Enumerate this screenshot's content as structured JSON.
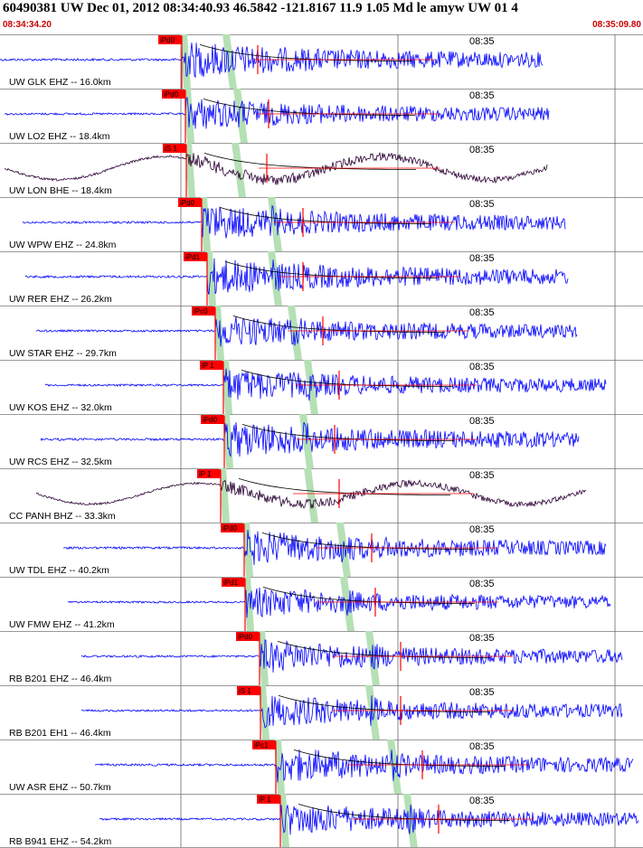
{
  "header": {
    "title": "60490381 UW Dec 01, 2012 08:34:40.93   46.5842 -121.8167 11.9 1.05 Md le amyw UW 01   4",
    "start_time": "08:34:34.20",
    "end_time": "08:35:09.80"
  },
  "colors": {
    "trace_blue": "#0000ff",
    "trace_dark": "#2a0033",
    "pick_red": "#ff0000",
    "window_green": "#b5e0b5",
    "grid": "#666666"
  },
  "chart_data": {
    "type": "line",
    "x_range": [
      "08:34:34.20",
      "08:35:09.80"
    ],
    "minute_marker": "08:35",
    "traces": [
      {
        "label": "UW GLK EHZ -- 16.0km",
        "pick": "iPd0",
        "kind": "hf",
        "amp": 0.9
      },
      {
        "label": "UW LO2 EHZ -- 18.4km",
        "pick": "iPd0",
        "kind": "hf",
        "amp": 0.8
      },
      {
        "label": "UW LON BHE -- 18.4km",
        "pick": "iS 1",
        "kind": "lf",
        "amp": 0.9
      },
      {
        "label": "UW WPW EHZ -- 24.8km",
        "pick": "iPd0",
        "kind": "hf",
        "amp": 0.85
      },
      {
        "label": "UW RER EHZ -- 26.2km",
        "pick": "iPd1",
        "kind": "hf",
        "amp": 0.9
      },
      {
        "label": "UW STAR EHZ -- 29.7km",
        "pick": "iPc0",
        "kind": "hf",
        "amp": 0.8
      },
      {
        "label": "UW KOS EHZ -- 32.0km",
        "pick": "iP 1",
        "kind": "hf",
        "amp": 0.8
      },
      {
        "label": "UW RCS EHZ -- 32.5km",
        "pick": "iPd0",
        "kind": "hf",
        "amp": 0.9
      },
      {
        "label": "CC PANH BHZ -- 33.3km",
        "pick": "iP 1",
        "kind": "lf",
        "amp": 0.8
      },
      {
        "label": "UW TDL EHZ -- 40.2km",
        "pick": "iPd0",
        "kind": "hf",
        "amp": 0.85
      },
      {
        "label": "UW FMW EHZ -- 41.2km",
        "pick": "iPd1",
        "kind": "hf",
        "amp": 0.75
      },
      {
        "label": "RB B201 EHZ -- 46.4km",
        "pick": "iPd0",
        "kind": "hf",
        "amp": 0.8
      },
      {
        "label": "RB B201 EH1 -- 46.4km",
        "pick": "iS 1",
        "kind": "hf",
        "amp": 0.8
      },
      {
        "label": "UW ASR EHZ -- 50.7km",
        "pick": "iPc1",
        "kind": "hf",
        "amp": 0.85
      },
      {
        "label": "RB B941 EHZ -- 54.2km",
        "pick": "iP 1",
        "kind": "hf",
        "amp": 0.8
      }
    ]
  }
}
